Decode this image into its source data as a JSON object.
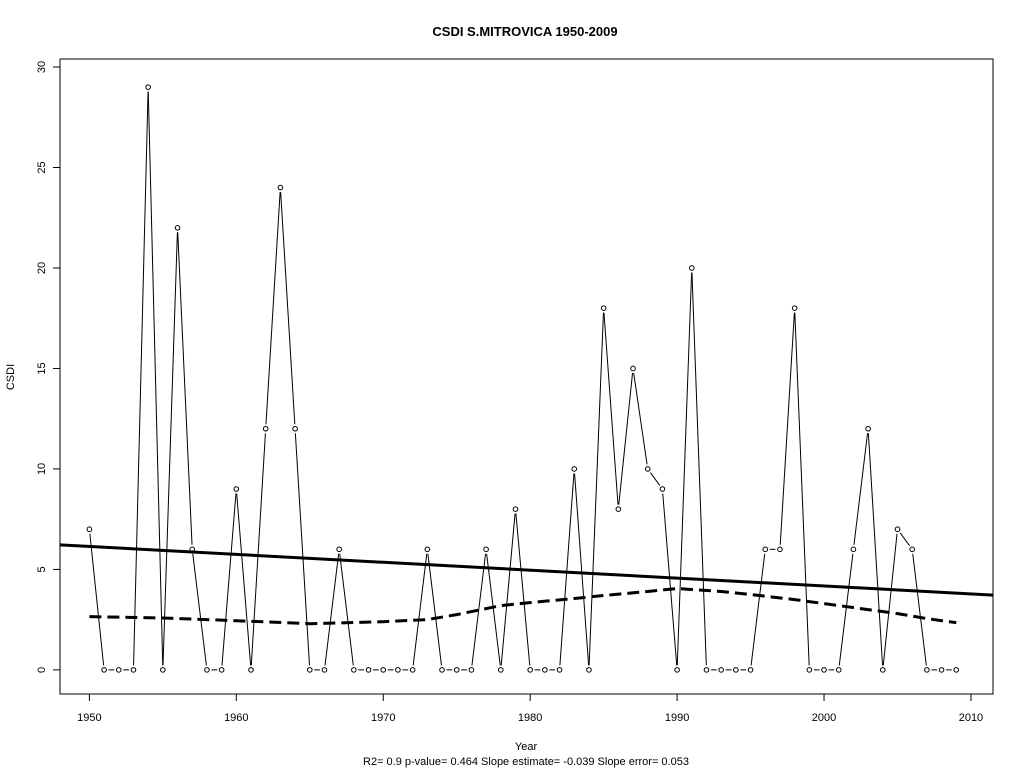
{
  "chart_data": {
    "type": "line",
    "title": "CSDI   S.MITROVICA 1950-2009",
    "xlabel": "Year",
    "ylabel": "CSDI",
    "footer": "R2= 0.9  p-value= 0.464  Slope estimate= -0.039  Slope error= 0.053",
    "xlim": [
      1948,
      2011.5
    ],
    "ylim": [
      -1.2,
      30.4
    ],
    "x_ticks": [
      1950,
      1960,
      1970,
      1980,
      1990,
      2000,
      2010
    ],
    "y_ticks": [
      0,
      5,
      10,
      15,
      20,
      25,
      30
    ],
    "grid": false,
    "legend": "none",
    "series": [
      {
        "style": "line-with-open-circles",
        "x": [
          1950,
          1951,
          1952,
          1953,
          1954,
          1955,
          1956,
          1957,
          1958,
          1959,
          1960,
          1961,
          1962,
          1963,
          1964,
          1965,
          1966,
          1967,
          1968,
          1969,
          1970,
          1971,
          1972,
          1973,
          1974,
          1975,
          1976,
          1977,
          1978,
          1979,
          1980,
          1981,
          1982,
          1983,
          1984,
          1985,
          1986,
          1987,
          1988,
          1989,
          1990,
          1991,
          1992,
          1993,
          1994,
          1995,
          1996,
          1997,
          1998,
          1999,
          2000,
          2001,
          2002,
          2003,
          2004,
          2005,
          2006,
          2007,
          2008,
          2009
        ],
        "y": [
          7,
          0,
          0,
          0,
          29,
          0,
          22,
          6,
          0,
          0,
          9,
          0,
          12,
          24,
          12,
          0,
          0,
          6,
          0,
          0,
          0,
          0,
          0,
          6,
          0,
          0,
          0,
          6,
          0,
          8,
          0,
          0,
          0,
          10,
          0,
          18,
          8,
          15,
          10,
          9,
          0,
          20,
          0,
          0,
          0,
          0,
          6,
          6,
          18,
          0,
          0,
          0,
          6,
          12,
          0,
          7,
          6,
          0,
          0,
          0
        ]
      },
      {
        "style": "solid-thick-linear-trend",
        "x": [
          1948,
          2011.5
        ],
        "y": [
          6.22,
          3.72
        ]
      },
      {
        "style": "dashed-thick-smooth",
        "x": [
          1950,
          1955,
          1960,
          1965,
          1970,
          1973,
          1975,
          1978,
          1980,
          1983,
          1985,
          1988,
          1990,
          1993,
          1995,
          1998,
          2000,
          2003,
          2005,
          2007,
          2009
        ],
        "y": [
          2.65,
          2.58,
          2.45,
          2.3,
          2.4,
          2.5,
          2.75,
          3.2,
          3.35,
          3.55,
          3.7,
          3.9,
          4.05,
          3.9,
          3.75,
          3.5,
          3.3,
          3.0,
          2.8,
          2.55,
          2.35
        ]
      }
    ]
  }
}
